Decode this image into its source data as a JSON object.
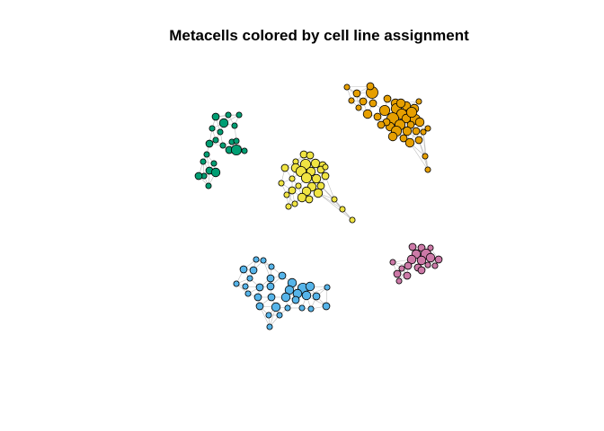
{
  "chart_data": {
    "type": "scatter",
    "title": "Metacells colored by cell line assignment",
    "xlabel": "",
    "ylabel": "",
    "grid": false,
    "legend": "none",
    "series": [
      {
        "color": "#E69F00",
        "points": [
          [
            386,
            97
          ],
          [
            397,
            104
          ],
          [
            414,
            103
          ],
          [
            404,
            113
          ],
          [
            399,
            120
          ],
          [
            415,
            115
          ],
          [
            409,
            127
          ],
          [
            431,
            110
          ],
          [
            440,
            115
          ],
          [
            428,
            123
          ],
          [
            441,
            121
          ],
          [
            452,
            118
          ],
          [
            461,
            121
          ],
          [
            447,
            127
          ],
          [
            437,
            132
          ],
          [
            452,
            132
          ],
          [
            462,
            133
          ],
          [
            434,
            141
          ],
          [
            445,
            139
          ],
          [
            457,
            139
          ],
          [
            467,
            136
          ],
          [
            441,
            146
          ],
          [
            453,
            146
          ],
          [
            463,
            146
          ],
          [
            437,
            152
          ],
          [
            449,
            154
          ],
          [
            466,
            156
          ],
          [
            456,
            159
          ],
          [
            471,
            147
          ],
          [
            476,
            143
          ],
          [
            430,
            136
          ],
          [
            420,
            130
          ],
          [
            458,
            125
          ],
          [
            446,
            115
          ],
          [
            424,
            139
          ],
          [
            473,
            174
          ],
          [
            476,
            189
          ],
          [
            466,
            113
          ],
          [
            412,
            96
          ],
          [
            391,
            112
          ]
        ],
        "sizes": [
          2,
          3,
          6,
          3,
          2,
          3,
          4,
          3,
          4,
          5,
          5,
          4,
          4,
          5,
          6,
          4,
          5,
          4,
          5,
          3,
          4,
          5,
          4,
          3,
          4,
          3,
          3,
          4,
          2,
          2,
          3,
          3,
          5,
          4,
          3,
          2,
          2,
          2,
          3,
          2
        ]
      },
      {
        "color": "#009E73",
        "points": [
          [
            240,
            130
          ],
          [
            254,
            128
          ],
          [
            266,
            128
          ],
          [
            249,
            137
          ],
          [
            261,
            140
          ],
          [
            236,
            143
          ],
          [
            240,
            156
          ],
          [
            233,
            160
          ],
          [
            248,
            162
          ],
          [
            255,
            167
          ],
          [
            263,
            167
          ],
          [
            272,
            168
          ],
          [
            226,
            180
          ],
          [
            238,
            182
          ],
          [
            233,
            190
          ],
          [
            240,
            192
          ],
          [
            227,
            196
          ],
          [
            221,
            196
          ],
          [
            232,
            207
          ],
          [
            258,
            158
          ],
          [
            245,
            147
          ],
          [
            230,
            172
          ],
          [
            263,
            157
          ]
        ],
        "sizes": [
          3,
          2,
          2,
          4,
          2,
          2,
          2,
          3,
          2,
          3,
          5,
          2,
          2,
          2,
          3,
          4,
          2,
          3,
          2,
          2,
          2,
          2,
          2
        ]
      },
      {
        "color": "#F0E442",
        "points": [
          [
            338,
            172
          ],
          [
            345,
            173
          ],
          [
            329,
            180
          ],
          [
            340,
            183
          ],
          [
            351,
            182
          ],
          [
            359,
            184
          ],
          [
            317,
            187
          ],
          [
            329,
            187
          ],
          [
            335,
            191
          ],
          [
            346,
            191
          ],
          [
            357,
            189
          ],
          [
            362,
            196
          ],
          [
            325,
            199
          ],
          [
            341,
            198
          ],
          [
            352,
            199
          ],
          [
            313,
            204
          ],
          [
            332,
            207
          ],
          [
            347,
            208
          ],
          [
            357,
            207
          ],
          [
            325,
            212
          ],
          [
            341,
            213
          ],
          [
            354,
            215
          ],
          [
            336,
            220
          ],
          [
            319,
            217
          ],
          [
            328,
            227
          ],
          [
            344,
            222
          ],
          [
            321,
            230
          ],
          [
            372,
            222
          ],
          [
            381,
            233
          ],
          [
            392,
            245
          ],
          [
            362,
            186
          ]
        ],
        "sizes": [
          3,
          3,
          2,
          5,
          4,
          3,
          3,
          4,
          5,
          4,
          3,
          3,
          2,
          5,
          4,
          2,
          2,
          4,
          3,
          3,
          4,
          4,
          4,
          2,
          2,
          3,
          2,
          2,
          2,
          2,
          2
        ]
      },
      {
        "color": "#56B4E9",
        "points": [
          [
            285,
            289
          ],
          [
            293,
            290
          ],
          [
            302,
            297
          ],
          [
            271,
            300
          ],
          [
            282,
            301
          ],
          [
            278,
            310
          ],
          [
            301,
            310
          ],
          [
            314,
            307
          ],
          [
            325,
            315
          ],
          [
            289,
            320
          ],
          [
            301,
            319
          ],
          [
            322,
            323
          ],
          [
            337,
            321
          ],
          [
            345,
            319
          ],
          [
            331,
            327
          ],
          [
            341,
            329
          ],
          [
            352,
            330
          ],
          [
            364,
            320
          ],
          [
            263,
            316
          ],
          [
            276,
            327
          ],
          [
            287,
            331
          ],
          [
            302,
            331
          ],
          [
            318,
            331
          ],
          [
            329,
            334
          ],
          [
            289,
            341
          ],
          [
            307,
            342
          ],
          [
            320,
            343
          ],
          [
            336,
            343
          ],
          [
            346,
            344
          ],
          [
            363,
            341
          ],
          [
            299,
            351
          ],
          [
            311,
            351
          ],
          [
            300,
            364
          ],
          [
            273,
            319
          ]
        ],
        "sizes": [
          2,
          2,
          2,
          3,
          3,
          2,
          3,
          3,
          4,
          3,
          3,
          4,
          5,
          4,
          4,
          4,
          3,
          2,
          2,
          2,
          3,
          3,
          4,
          3,
          3,
          4,
          2,
          2,
          2,
          3,
          2,
          2,
          2,
          2
        ]
      },
      {
        "color": "#CC79A7",
        "points": [
          [
            459,
            275
          ],
          [
            469,
            276
          ],
          [
            479,
            276
          ],
          [
            463,
            283
          ],
          [
            474,
            283
          ],
          [
            458,
            289
          ],
          [
            469,
            290
          ],
          [
            479,
            287
          ],
          [
            488,
            289
          ],
          [
            484,
            296
          ],
          [
            465,
            298
          ],
          [
            454,
            296
          ],
          [
            447,
            299
          ],
          [
            442,
            305
          ],
          [
            453,
            307
          ],
          [
            444,
            313
          ],
          [
            469,
            301
          ],
          [
            476,
            295
          ],
          [
            437,
            292
          ]
        ],
        "sizes": [
          3,
          3,
          2,
          4,
          5,
          4,
          4,
          4,
          3,
          2,
          3,
          3,
          2,
          3,
          3,
          2,
          3,
          2,
          2
        ]
      }
    ]
  }
}
